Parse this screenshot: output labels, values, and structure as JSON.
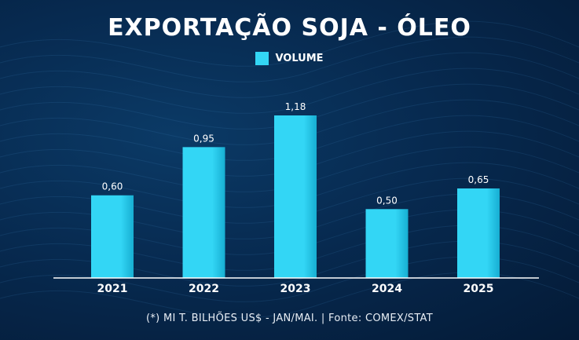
{
  "title": "EXPORTAÇÃO SOJA - ÓLEO",
  "legend": {
    "label": "VOLUME"
  },
  "footnote": "(*) MI T. BILHÕES US$ - JAN/MAI. | Fonte: COMEX/STAT",
  "colors": {
    "bar": "#33d6f5",
    "bar_dark": "#17aed2",
    "axis": "#ffffff",
    "text": "#ffffff"
  },
  "chart_data": {
    "type": "bar",
    "categories": [
      "2021",
      "2022",
      "2023",
      "2024",
      "2025"
    ],
    "series": [
      {
        "name": "VOLUME",
        "values": [
          0.6,
          0.95,
          1.18,
          0.5,
          0.65
        ],
        "labels": [
          "0,60",
          "0,95",
          "1,18",
          "0,50",
          "0,65"
        ]
      }
    ],
    "ylim": [
      0,
      1.18
    ],
    "grid": false,
    "legend_position": "top-center"
  }
}
